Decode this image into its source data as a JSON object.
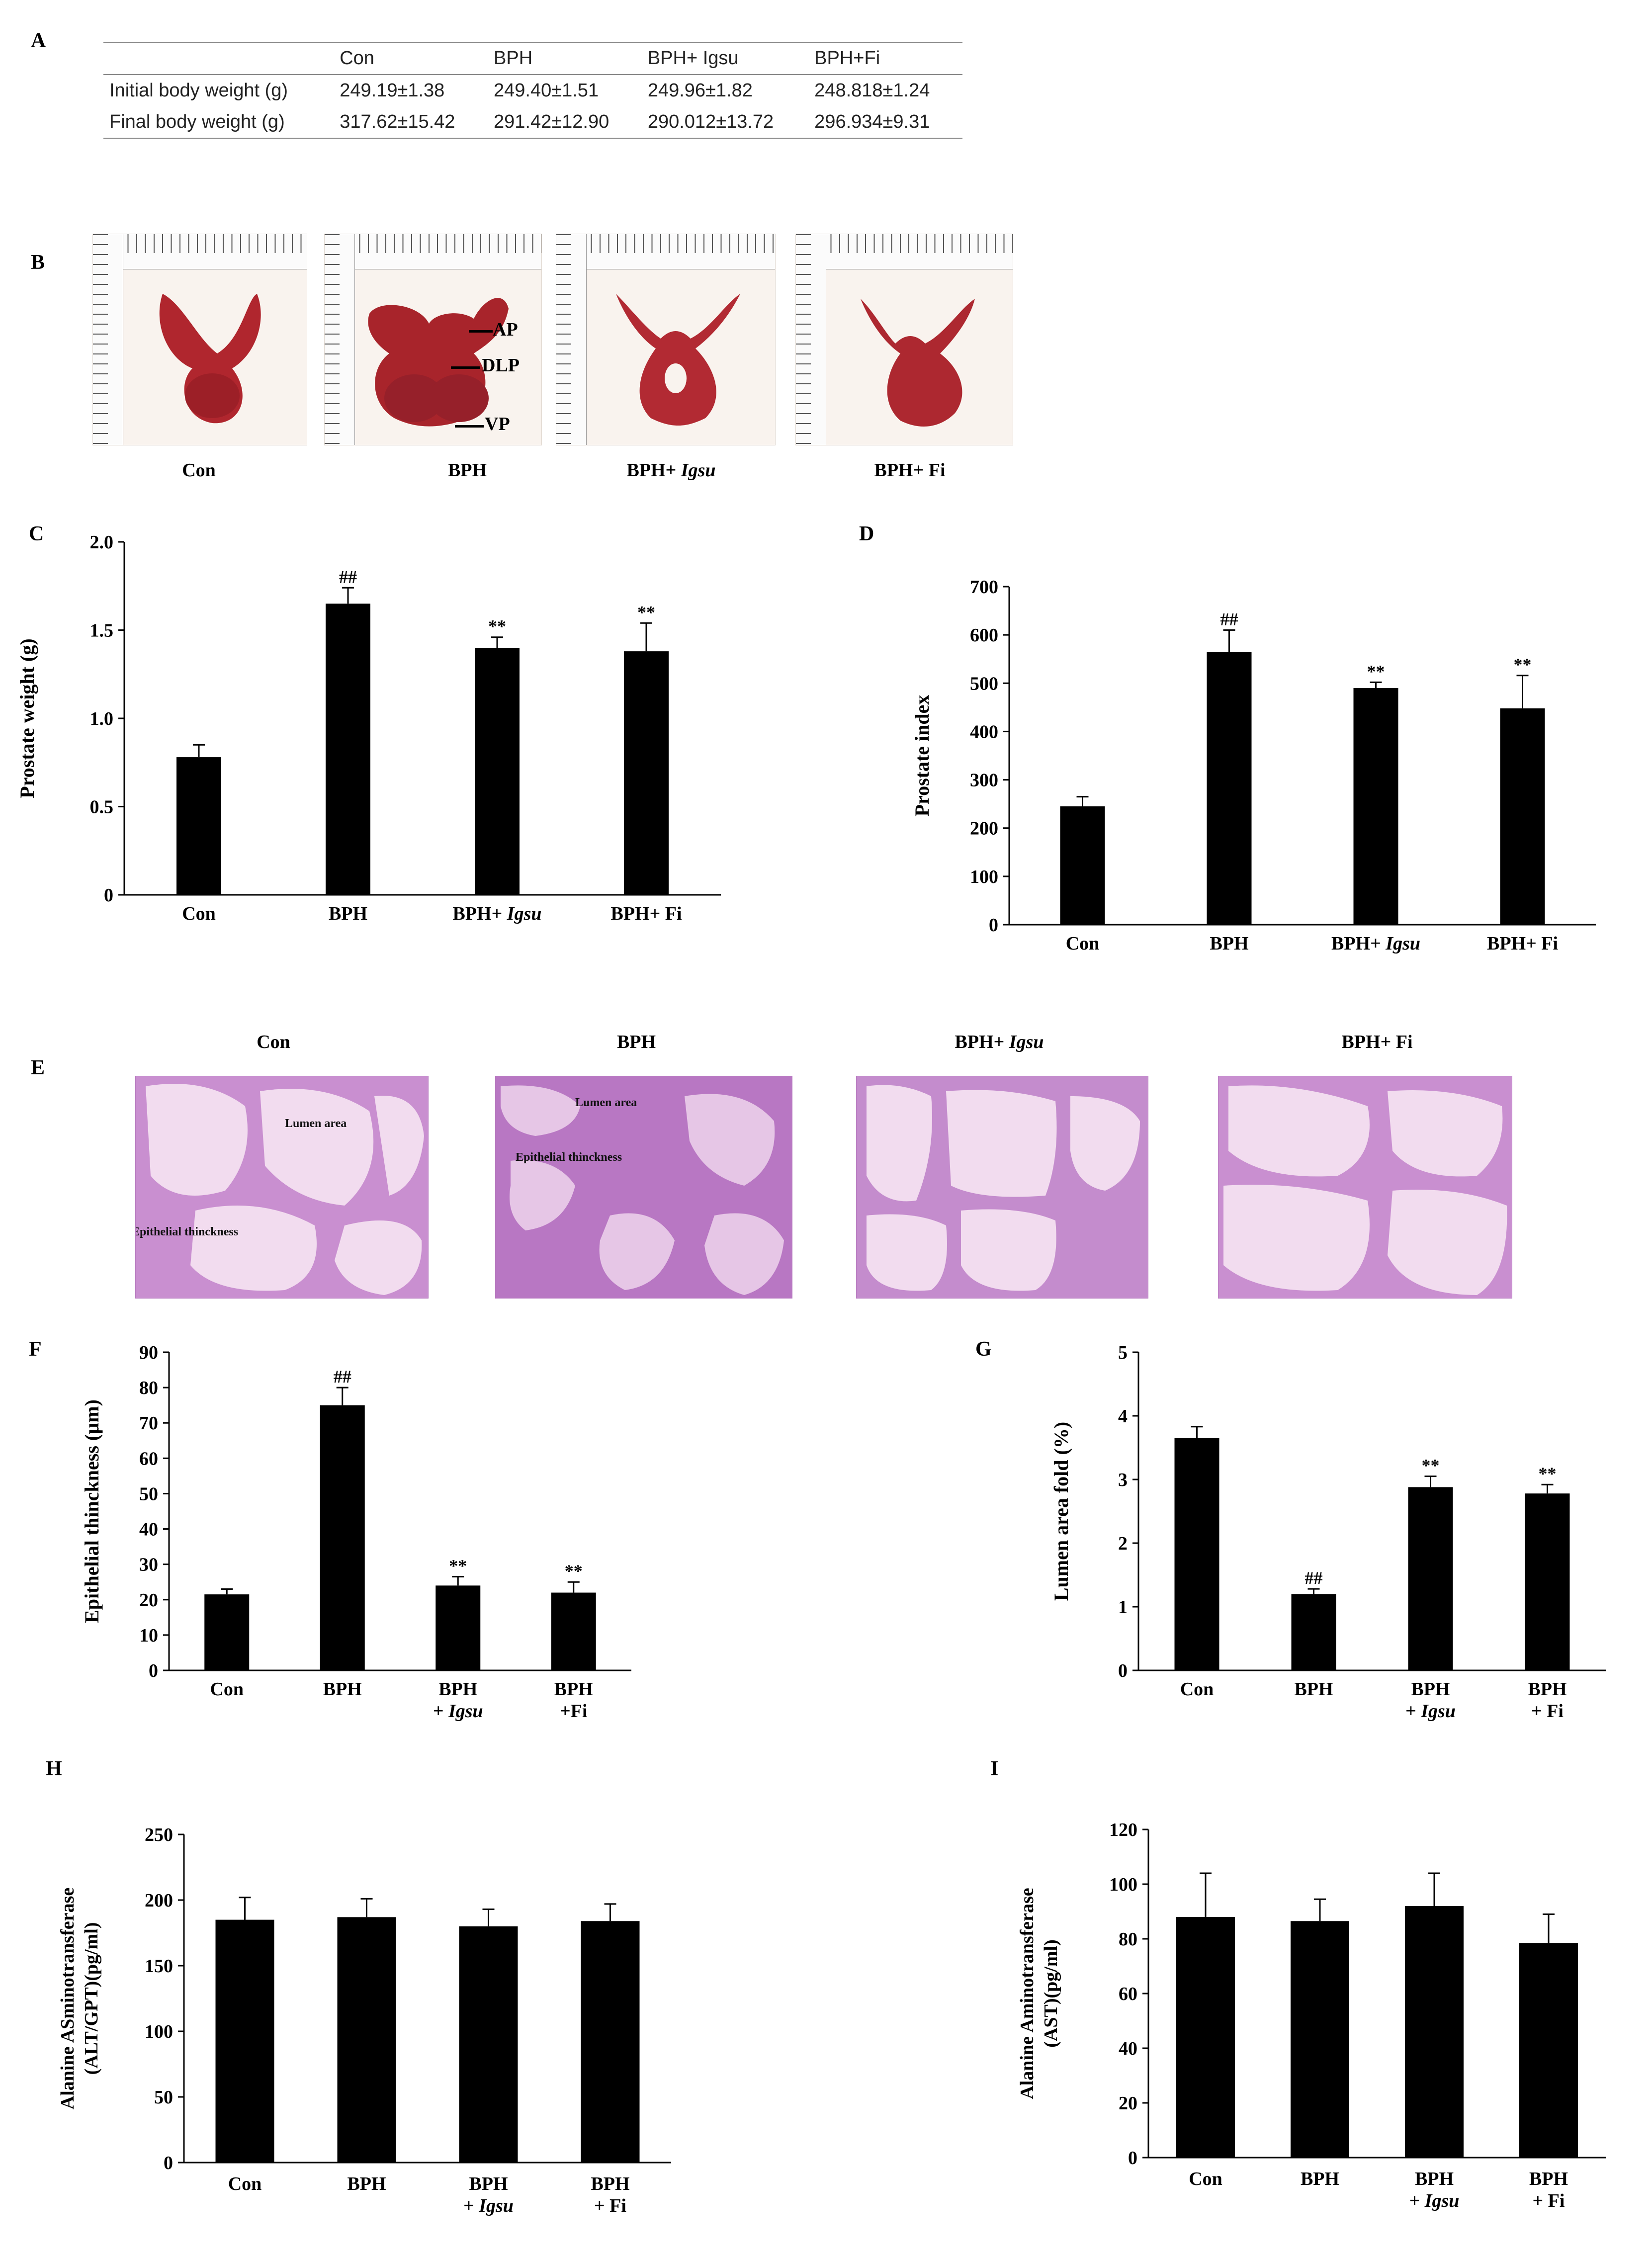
{
  "panels": {
    "A": "A",
    "B": "B",
    "C": "C",
    "D": "D",
    "E": "E",
    "F": "F",
    "G": "G",
    "H": "H",
    "I": "I"
  },
  "table": {
    "columns": [
      "",
      "Con",
      "BPH",
      "BPH+ Igsu",
      "BPH+Fi"
    ],
    "rows": [
      {
        "label": "Initial body weight (g)",
        "values": [
          "249.19±1.38",
          "249.40±1.51",
          "249.96±1.82",
          "248.818±1.24"
        ]
      },
      {
        "label": "Final body weight (g)",
        "values": [
          "317.62±15.42",
          "291.42±12.90",
          "290.012±13.72",
          "296.934±9.31"
        ]
      }
    ]
  },
  "photos": {
    "labels": [
      {
        "main": "Con",
        "italic": ""
      },
      {
        "main": "BPH",
        "italic": ""
      },
      {
        "main": "BPH+ ",
        "italic": "Igsu"
      },
      {
        "main": "BPH+ Fi",
        "italic": ""
      }
    ],
    "annotations": {
      "ap": "AP",
      "dlp": "DLP",
      "vp": "VP"
    },
    "organ_color": "#b0262e"
  },
  "histology": {
    "titles": [
      {
        "main": "Con",
        "italic": ""
      },
      {
        "main": "BPH",
        "italic": ""
      },
      {
        "main": "BPH+ ",
        "italic": "Igsu"
      },
      {
        "main": "BPH+ Fi",
        "italic": ""
      }
    ],
    "annotations": {
      "lumen": "Lumen area",
      "epithelial": "Epithelial thinckness"
    },
    "tissue_color": "#c98fd0",
    "lumen_color": "#f2dcef"
  },
  "chart_data": [
    {
      "panel": "C",
      "type": "bar",
      "ylabel": "Prostate weight (g)",
      "ylim": [
        0,
        2.0
      ],
      "yticks": [
        "0",
        "0.5",
        "1.0",
        "1.5",
        "2.0"
      ],
      "ytick_values": [
        0,
        0.5,
        1.0,
        1.5,
        2.0
      ],
      "categories": [
        [
          "Con"
        ],
        [
          "BPH"
        ],
        [
          "BPH+ ",
          "Igsu"
        ],
        [
          "BPH+ Fi"
        ]
      ],
      "values": [
        0.78,
        1.65,
        1.4,
        1.38
      ],
      "errors": [
        0.07,
        0.09,
        0.06,
        0.16
      ],
      "marks": [
        "",
        "##",
        "**",
        "**"
      ]
    },
    {
      "panel": "D",
      "type": "bar",
      "ylabel": "Prostate index",
      "ylim": [
        0,
        700
      ],
      "yticks": [
        "0",
        "100",
        "200",
        "300",
        "400",
        "500",
        "600",
        "700"
      ],
      "ytick_values": [
        0,
        100,
        200,
        300,
        400,
        500,
        600,
        700
      ],
      "categories": [
        [
          "Con"
        ],
        [
          "BPH"
        ],
        [
          "BPH+ ",
          "Igsu"
        ],
        [
          "BPH+ Fi"
        ]
      ],
      "values": [
        245,
        565,
        490,
        448
      ],
      "errors": [
        20,
        45,
        12,
        68
      ],
      "marks": [
        "",
        "##",
        "**",
        "**"
      ]
    },
    {
      "panel": "F",
      "type": "bar",
      "ylabel": "Epithelial thinckness (µm)",
      "ylim": [
        0,
        90
      ],
      "yticks": [
        "0",
        "10",
        "20",
        "30",
        "40",
        "50",
        "60",
        "70",
        "80",
        "90"
      ],
      "ytick_values": [
        0,
        10,
        20,
        30,
        40,
        50,
        60,
        70,
        80,
        90
      ],
      "categories": [
        [
          "Con"
        ],
        [
          "BPH"
        ],
        [
          "BPH",
          "+ ",
          "Igsu"
        ],
        [
          "BPH",
          "+Fi"
        ]
      ],
      "values": [
        21.5,
        75,
        24,
        22
      ],
      "errors": [
        1.5,
        5,
        2.5,
        3
      ],
      "marks": [
        "",
        "##",
        "**",
        "**"
      ]
    },
    {
      "panel": "G",
      "type": "bar",
      "ylabel": "Lumen area fold (%)",
      "ylim": [
        0,
        5
      ],
      "yticks": [
        "0",
        "1",
        "2",
        "3",
        "4",
        "5"
      ],
      "ytick_values": [
        0,
        1,
        2,
        3,
        4,
        5
      ],
      "categories": [
        [
          "Con"
        ],
        [
          "BPH"
        ],
        [
          "BPH",
          "+ ",
          "Igsu"
        ],
        [
          "BPH",
          "+ Fi"
        ]
      ],
      "values": [
        3.65,
        1.2,
        2.88,
        2.78
      ],
      "errors": [
        0.18,
        0.08,
        0.17,
        0.14
      ],
      "marks": [
        "",
        "##",
        "**",
        "**"
      ]
    },
    {
      "panel": "H",
      "type": "bar",
      "ylabel": [
        "Alanine ASminotransferase",
        "(ALT/GPT)(pg/ml)"
      ],
      "ylim": [
        0,
        250
      ],
      "yticks": [
        "0",
        "50",
        "100",
        "150",
        "200",
        "250"
      ],
      "ytick_values": [
        0,
        50,
        100,
        150,
        200,
        250
      ],
      "categories": [
        [
          "Con"
        ],
        [
          "BPH"
        ],
        [
          "BPH",
          "+ ",
          "Igsu"
        ],
        [
          "BPH",
          "+ Fi"
        ]
      ],
      "values": [
        185,
        187,
        180,
        184
      ],
      "errors": [
        17,
        14,
        13,
        13
      ],
      "marks": [
        "",
        "",
        "",
        ""
      ]
    },
    {
      "panel": "I",
      "type": "bar",
      "ylabel": [
        "Alanine Aminotransferase",
        "(AST)(pg/ml)"
      ],
      "ylim": [
        0,
        120
      ],
      "yticks": [
        "0",
        "20",
        "40",
        "60",
        "80",
        "100",
        "120"
      ],
      "ytick_values": [
        0,
        20,
        40,
        60,
        80,
        100,
        120
      ],
      "categories": [
        [
          "Con"
        ],
        [
          "BPH"
        ],
        [
          "BPH",
          "+ ",
          "Igsu"
        ],
        [
          "BPH",
          "+ Fi"
        ]
      ],
      "values": [
        88,
        86.5,
        92,
        78.5
      ],
      "errors": [
        16,
        8,
        12,
        10.5
      ],
      "marks": [
        "",
        "",
        "",
        ""
      ]
    }
  ]
}
